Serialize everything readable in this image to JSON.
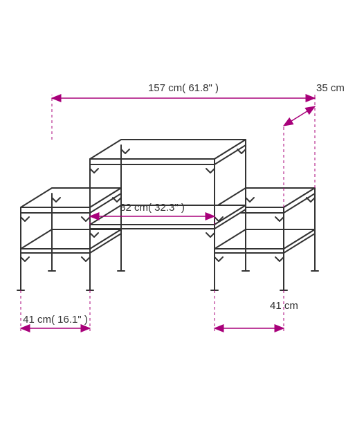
{
  "diagram": {
    "type": "technical-drawing",
    "accent_color": "#a8007a",
    "text_color": "#333333",
    "product_line_color": "#333333",
    "background_color": "#ffffff",
    "label_fontsize": 15,
    "dimensions": {
      "total_width": {
        "label": "157 cm( 61.8\" )",
        "value_cm": 157
      },
      "depth": {
        "label": "35 cm",
        "value_cm": 35
      },
      "center_width": {
        "label": "82 cm( 32.3\" )",
        "value_cm": 82
      },
      "side_width_L": {
        "label": "41 cm( 16.1\" )",
        "value_cm": 41
      },
      "side_width_R": {
        "label": "41 cm",
        "value_cm": 41
      }
    }
  }
}
